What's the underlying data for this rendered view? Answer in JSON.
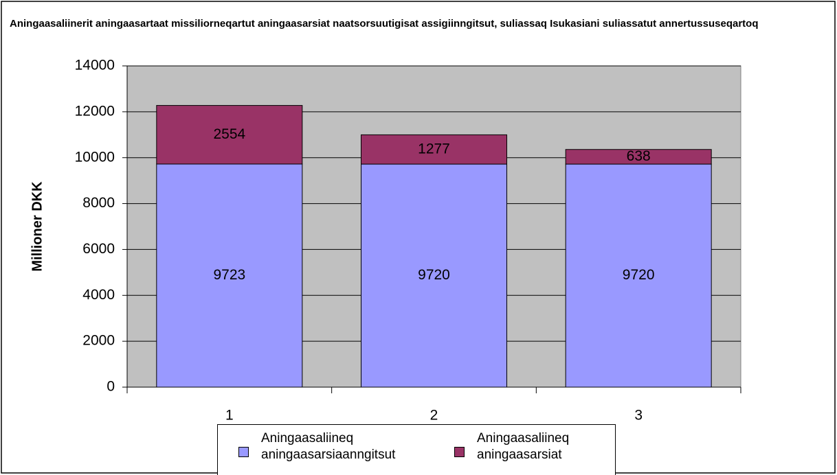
{
  "chart_data": {
    "type": "stacked_bar",
    "title": "Aningaasaliinerit aningaasartaat missiliorneqartut aningaasarsiat naatsorsuutigisat assigiinngitsut, suliassaq Isukasiani suliassatut annertussuseqartoq",
    "y_label": "Millioner DKK",
    "categories": [
      "1",
      "2",
      "3"
    ],
    "series": [
      {
        "name": "Aningaasaliineq aningaasarsiaanngitsut",
        "color": "#9999ff",
        "values": [
          9723,
          9720,
          9720
        ]
      },
      {
        "name": "Aningaasaliineq aningaasarsiat",
        "color": "#993366",
        "values": [
          2554,
          1277,
          638
        ]
      }
    ],
    "ylim": [
      0,
      14000
    ],
    "yticks": [
      0,
      2000,
      4000,
      6000,
      8000,
      10000,
      12000,
      14000
    ],
    "grid": true,
    "plot_background": "#c0c0c0",
    "legend": "bottom"
  }
}
